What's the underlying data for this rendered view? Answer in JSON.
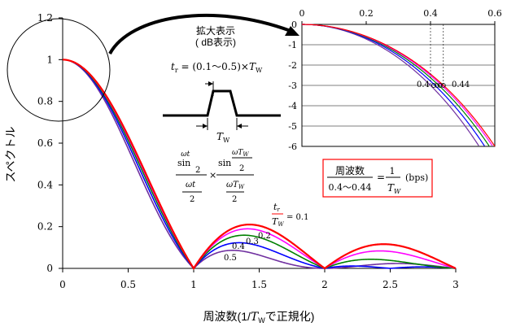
{
  "chart_data": [
    {
      "type": "line",
      "xlabel": "周波数(1/",
      "xlabel_italic": "T",
      "xlabel_sub": "W",
      "xlabel_tail": "で正規化)",
      "ylabel": "スペクトル",
      "xlim": [
        0,
        3
      ],
      "ylim": [
        0,
        1.2
      ],
      "xticks": [
        "0",
        "0.5",
        "1",
        "1.5",
        "2",
        "2.5",
        "3"
      ],
      "yticks": [
        "0",
        "0.2",
        "0.4",
        "0.6",
        "0.8",
        "1",
        "1.2"
      ],
      "grid": false,
      "series": [
        {
          "name": "0.1",
          "color": "#ff0000",
          "ratio": 0.1
        },
        {
          "name": "0.2",
          "color": "#ff00ff",
          "ratio": 0.2
        },
        {
          "name": "0.3",
          "color": "#008000",
          "ratio": 0.3
        },
        {
          "name": "0.4",
          "color": "#0000ff",
          "ratio": 0.4
        },
        {
          "name": "0.5",
          "color": "#7030a0",
          "ratio": 0.5
        }
      ],
      "series_labels": [
        "0.2",
        "0.3",
        "0.4",
        "0.5"
      ],
      "ratio_label": {
        "num": "t",
        "num_sub": "r",
        "den": "T",
        "den_sub": "W",
        "value": "= 0.1"
      }
    },
    {
      "type": "line",
      "xlim": [
        0,
        0.6
      ],
      "ylim": [
        -6,
        0
      ],
      "xticks": [
        "0",
        "0.2",
        "0.4",
        "0.6"
      ],
      "yticks": [
        "0",
        "-1",
        "-2",
        "-3",
        "-4",
        "-5",
        "-6"
      ],
      "grid": true,
      "markers": [
        0.4,
        0.44
      ],
      "marker_labels": {
        "left": "0.4",
        "right": "0.44"
      }
    }
  ],
  "annotations": {
    "zoom_title": "拡大表示",
    "zoom_sub": "( dB表示)",
    "pulse_formula": {
      "lhs": "t",
      "lhs_sub": "r",
      "mid": " = (0.1～0.5)×",
      "rhs": "T",
      "rhs_sub": "W"
    },
    "pulse_width": {
      "sym": "T",
      "sub": "W"
    },
    "formula": {
      "sin": "sin",
      "omega_t": "ωt",
      "two": "2",
      "omega_tw": "ωT",
      "tw_sub": "W",
      "times": "×"
    },
    "boxed": {
      "title": "周波数",
      "range": "0.4～0.44",
      "eq": "=",
      "one": "1",
      "tw": "T",
      "tw_sub": "W",
      "unit": "(bps)"
    }
  }
}
